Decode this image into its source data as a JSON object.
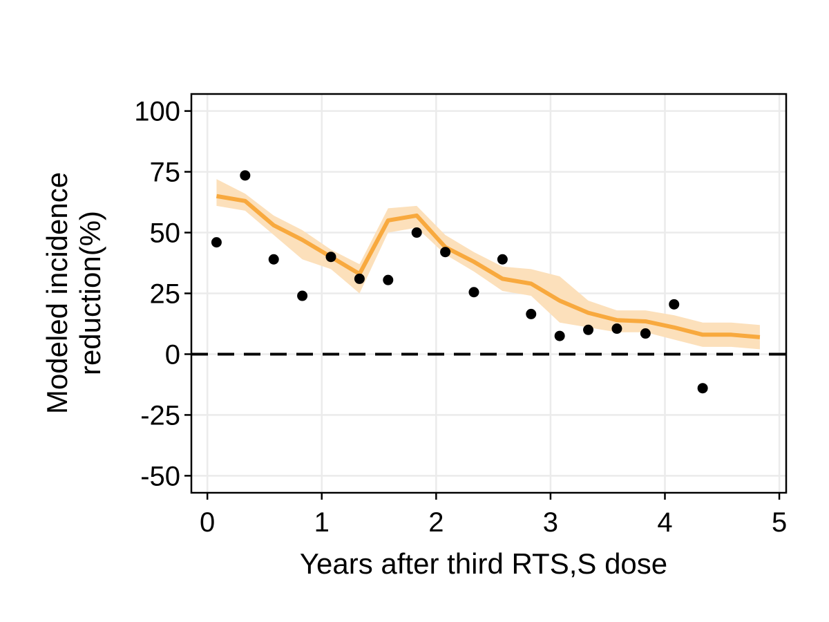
{
  "chart_data": {
    "type": "line",
    "title": "",
    "xlabel": "Years after third RTS,S dose",
    "ylabel_lines": [
      "Modeled incidence",
      "reduction(%)"
    ],
    "xlim": [
      -0.14,
      5.06
    ],
    "ylim": [
      -57,
      107
    ],
    "x_ticks": [
      0,
      1,
      2,
      3,
      4,
      5
    ],
    "y_ticks": [
      -50,
      -25,
      0,
      25,
      50,
      75,
      100
    ],
    "grid": true,
    "legend": "none",
    "reference_line": {
      "y": 0,
      "style": "dashed",
      "color": "#000000"
    },
    "series": [
      {
        "role": "model",
        "kind": "line",
        "color": "#f8a93e",
        "x": [
          0.08,
          0.33,
          0.58,
          0.83,
          1.08,
          1.33,
          1.58,
          1.83,
          2.08,
          2.33,
          2.58,
          2.83,
          3.08,
          3.33,
          3.58,
          3.83,
          4.08,
          4.33,
          4.58,
          4.83
        ],
        "y": [
          65,
          63,
          53,
          47,
          40,
          33,
          55,
          57,
          44,
          38,
          31,
          29,
          22,
          17,
          14,
          13.5,
          11,
          8,
          8,
          7
        ]
      },
      {
        "role": "uncertainty-band",
        "kind": "band",
        "color": "#fce0bb",
        "x": [
          0.08,
          0.33,
          0.58,
          0.83,
          1.08,
          1.33,
          1.58,
          1.83,
          2.08,
          2.33,
          2.58,
          2.83,
          3.08,
          3.33,
          3.58,
          3.83,
          4.08,
          4.33,
          4.58,
          4.83
        ],
        "lower": [
          61,
          59,
          49,
          39,
          35,
          25,
          50,
          52,
          41,
          34,
          26,
          24,
          13,
          11,
          9,
          9,
          6,
          3,
          3,
          2
        ],
        "upper": [
          72,
          66,
          57,
          51,
          43,
          37,
          60,
          61,
          49,
          42,
          36,
          35,
          32,
          22,
          18,
          18,
          16,
          13,
          13,
          12
        ]
      },
      {
        "role": "observed",
        "kind": "scatter",
        "color": "#000000",
        "x": [
          0.08,
          0.33,
          0.58,
          0.83,
          1.08,
          1.33,
          1.58,
          1.83,
          2.08,
          2.33,
          2.58,
          2.83,
          3.08,
          3.33,
          3.58,
          3.83,
          4.08,
          4.33
        ],
        "y": [
          46,
          73.5,
          39,
          24,
          40,
          31,
          30.5,
          50,
          42,
          25.5,
          39,
          16.5,
          7.5,
          10,
          10.5,
          8.5,
          20.5,
          -14
        ]
      }
    ]
  }
}
